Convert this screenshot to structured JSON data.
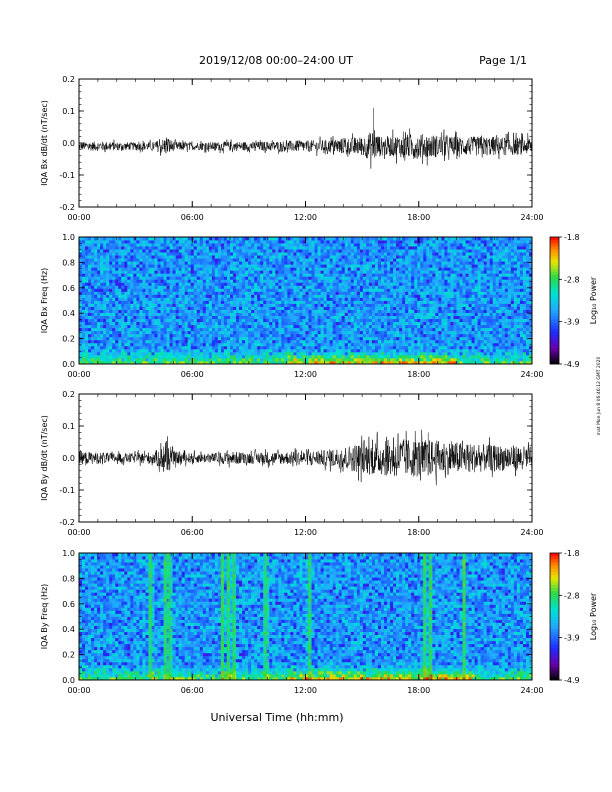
{
  "header": {
    "title": "2019/12/08  00:00–24:00 UT",
    "page": "Page 1/1"
  },
  "footer": {
    "xlabel": "Universal Time (hh:mm)"
  },
  "side_note": "mat Mon Jun 8 06:46:12 GMT 2020",
  "colors": {
    "trace": "#000000",
    "frame": "#000000"
  },
  "x_ticks": [
    "00:00",
    "06:00",
    "12:00",
    "18:00",
    "24:00"
  ],
  "chart_data": [
    {
      "type": "line",
      "panel": "bx_dbdt",
      "ylabel": "IQA Bx dB/dt (nT/sec)",
      "xlim": [
        0,
        24
      ],
      "ylim": [
        -0.2,
        0.2
      ],
      "yticks": [
        "0.2",
        "0.1",
        "0.0",
        "-0.1",
        "-0.2"
      ],
      "ytick_values": [
        0.2,
        0.1,
        0.0,
        -0.1,
        -0.2
      ],
      "envelope": {
        "x_hours": [
          0,
          1,
          2,
          3,
          4,
          4.7,
          5,
          6,
          7,
          8,
          9,
          10,
          11,
          12,
          13,
          14,
          15,
          15.6,
          16,
          17,
          18,
          19,
          20,
          21,
          22,
          23,
          24
        ],
        "amplitude": [
          0.012,
          0.015,
          0.013,
          0.012,
          0.014,
          0.03,
          0.015,
          0.012,
          0.013,
          0.015,
          0.014,
          0.015,
          0.017,
          0.018,
          0.02,
          0.025,
          0.03,
          0.05,
          0.03,
          0.035,
          0.04,
          0.035,
          0.03,
          0.03,
          0.03,
          0.028,
          0.025
        ],
        "center": -0.01,
        "spike": {
          "x": 15.6,
          "y": 0.11
        }
      }
    },
    {
      "type": "heatmap",
      "panel": "bx_freq",
      "ylabel": "IQA Bx Freq (Hz)",
      "xlim": [
        0,
        24
      ],
      "ylim": [
        0,
        1.0
      ],
      "yticks": [
        "1.0",
        "0.8",
        "0.6",
        "0.4",
        "0.2",
        "0.0"
      ],
      "ytick_values": [
        1.0,
        0.8,
        0.6,
        0.4,
        0.2,
        0.0
      ],
      "colorbar": {
        "label": "Log₁₀ Power",
        "ticks": [
          "-1.8",
          "-2.8",
          "-3.9",
          "-4.9"
        ],
        "range": [
          -4.9,
          -1.8
        ]
      },
      "low_freq_enhancement_hours": [
        [
          11,
          20
        ]
      ]
    },
    {
      "type": "line",
      "panel": "by_dbdt",
      "ylabel": "IQA By dB/dt (nT/sec)",
      "xlim": [
        0,
        24
      ],
      "ylim": [
        -0.2,
        0.2
      ],
      "yticks": [
        "0.2",
        "0.1",
        "0.0",
        "-0.1",
        "-0.2"
      ],
      "ytick_values": [
        0.2,
        0.1,
        0.0,
        -0.1,
        -0.2
      ],
      "envelope": {
        "x_hours": [
          0,
          1,
          2,
          3,
          4,
          4.7,
          5,
          6,
          7,
          8,
          9,
          10,
          11,
          12,
          13,
          14,
          15,
          16,
          17,
          18,
          19,
          20,
          21,
          22,
          23,
          24
        ],
        "amplitude": [
          0.02,
          0.018,
          0.015,
          0.015,
          0.02,
          0.05,
          0.02,
          0.015,
          0.015,
          0.02,
          0.018,
          0.02,
          0.02,
          0.022,
          0.025,
          0.035,
          0.05,
          0.055,
          0.06,
          0.06,
          0.055,
          0.05,
          0.045,
          0.04,
          0.04,
          0.035
        ],
        "center": 0.0,
        "spike": {
          "x": 18.5,
          "y": 0.08
        }
      }
    },
    {
      "type": "heatmap",
      "panel": "by_freq",
      "ylabel": "IQA By Freq (Hz)",
      "xlim": [
        0,
        24
      ],
      "ylim": [
        0,
        1.0
      ],
      "yticks": [
        "1.0",
        "0.8",
        "0.6",
        "0.4",
        "0.2",
        "0.0"
      ],
      "ytick_values": [
        1.0,
        0.8,
        0.6,
        0.4,
        0.2,
        0.0
      ],
      "colorbar": {
        "label": "Log₁₀ Power",
        "ticks": [
          "-1.8",
          "-2.8",
          "-3.9",
          "-4.9"
        ],
        "range": [
          -4.9,
          -1.8
        ]
      },
      "broadband_stripes_hours": [
        3.8,
        4.6,
        4.8,
        7.6,
        7.9,
        8.2,
        9.9,
        12.2,
        18.3,
        18.6,
        20.4
      ],
      "low_freq_enhancement_hours": [
        [
          11,
          21
        ]
      ]
    }
  ]
}
